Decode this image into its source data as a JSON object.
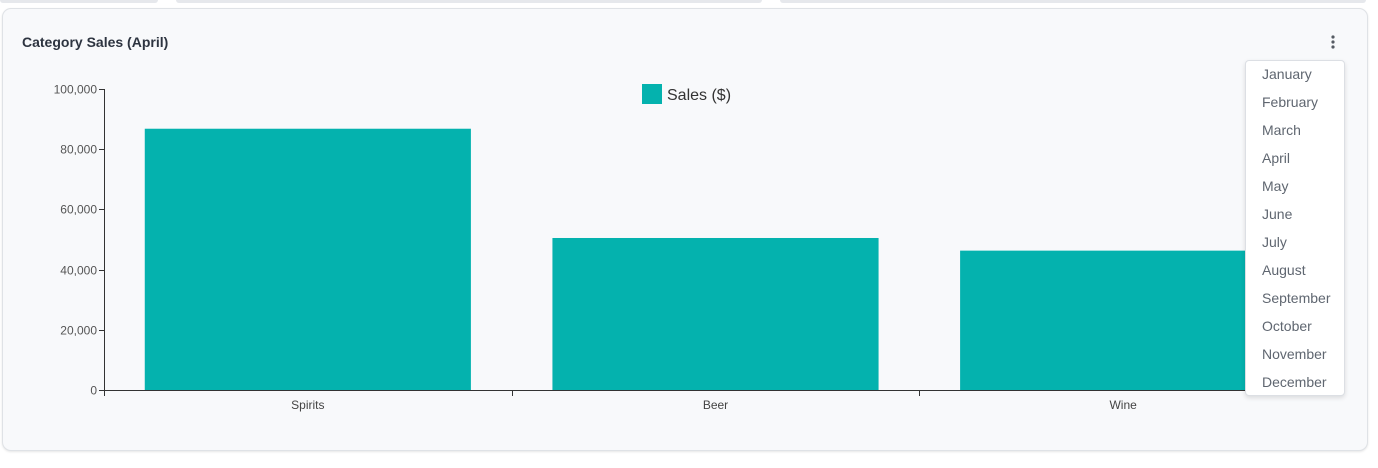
{
  "card": {
    "title": "Category Sales (April)",
    "menu_icon": "more-vertical-icon"
  },
  "menu": {
    "months": [
      "January",
      "February",
      "March",
      "April",
      "May",
      "June",
      "July",
      "August",
      "September",
      "October",
      "November",
      "December"
    ]
  },
  "chart_data": {
    "type": "bar",
    "title": "",
    "xlabel": "",
    "ylabel": "",
    "categories": [
      "Spirits",
      "Beer",
      "Wine"
    ],
    "series": [
      {
        "name": "Sales ($)",
        "values": [
          86800,
          50500,
          46300
        ],
        "color": "#04b2ae"
      }
    ],
    "ylim": [
      0,
      100000
    ],
    "yticks": [
      0,
      20000,
      40000,
      60000,
      80000,
      100000
    ],
    "ytick_labels": [
      "0",
      "20,000",
      "40,000",
      "60,000",
      "80,000",
      "100,000"
    ],
    "legend": "top-center",
    "grid": false
  }
}
